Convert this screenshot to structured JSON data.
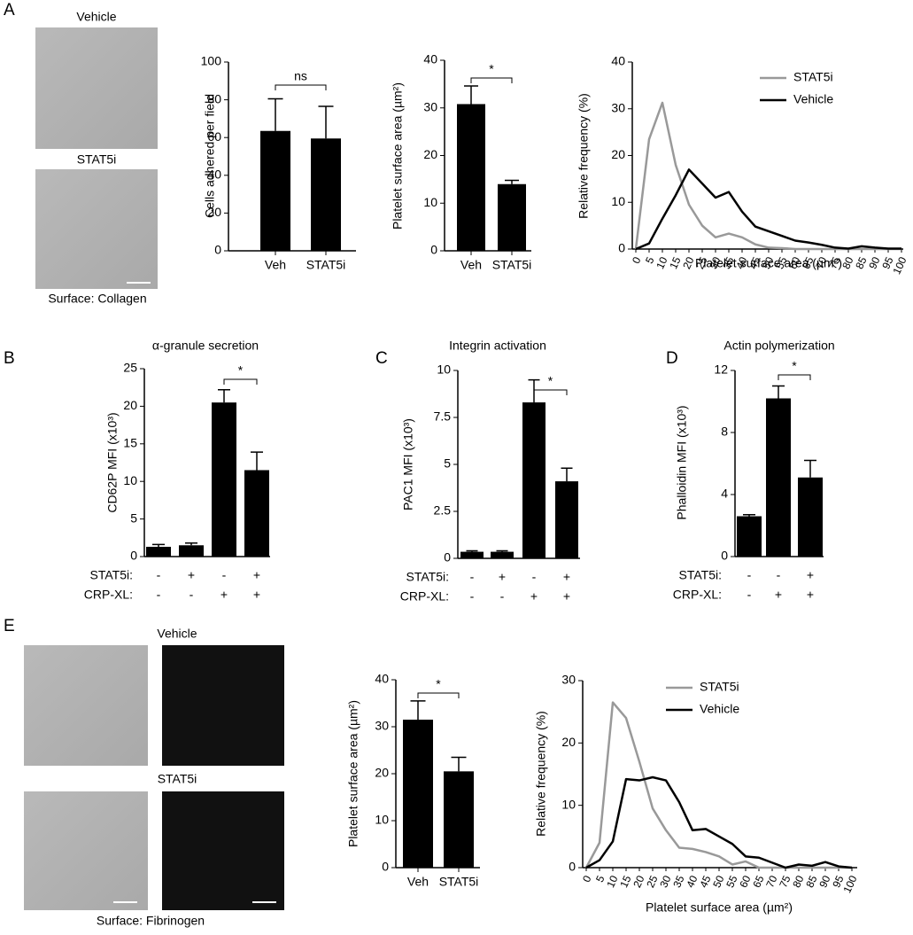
{
  "panel_labels": [
    "A",
    "B",
    "C",
    "D",
    "E"
  ],
  "micrographs": {
    "collagen": {
      "labels": [
        "Vehicle",
        "STAT5i"
      ],
      "surface": "Surface: Collagen"
    },
    "fibrinogen": {
      "labels": [
        "Vehicle",
        "STAT5i"
      ],
      "surface": "Surface: Fibrinogen"
    }
  },
  "chart_data": [
    {
      "type": "bar",
      "ylabel": "Cells adhered per field",
      "categories": [
        "Veh",
        "STAT5i"
      ],
      "values": [
        63.5,
        59.5
      ],
      "errors": [
        17,
        17
      ],
      "color": "#000000",
      "ylim": [
        0,
        100
      ],
      "yticks": [
        0,
        20,
        40,
        60,
        80,
        100
      ],
      "annotation": "ns"
    },
    {
      "type": "bar",
      "ylabel": "Platelet surface area (µm²)",
      "categories": [
        "Veh",
        "STAT5i"
      ],
      "values": [
        30.8,
        14
      ],
      "errors": [
        3.8,
        0.8
      ],
      "color": "#000000",
      "ylim": [
        0,
        40
      ],
      "yticks": [
        0,
        10,
        20,
        30,
        40
      ],
      "annotation": "*"
    },
    {
      "type": "line",
      "ylabel": "Relative frequency (%)",
      "xlabel": "Platelet surface area (µm²)",
      "x": [
        0,
        5,
        10,
        15,
        20,
        25,
        30,
        35,
        40,
        45,
        50,
        55,
        60,
        65,
        70,
        75,
        80,
        85,
        90,
        95,
        100
      ],
      "xlim": [
        0,
        100
      ],
      "xticks": [
        0,
        5,
        10,
        15,
        20,
        25,
        30,
        35,
        40,
        45,
        50,
        55,
        60,
        65,
        70,
        75,
        80,
        85,
        90,
        95,
        100
      ],
      "ylim": [
        0,
        40
      ],
      "yticks": [
        0,
        10,
        20,
        30,
        40
      ],
      "legend": "upper right",
      "series": [
        {
          "name": "STAT5i",
          "color": "#999999",
          "values": [
            0,
            23.5,
            31.3,
            18,
            9.5,
            5,
            2.5,
            3.3,
            2.5,
            1,
            0.3,
            0.2,
            0,
            0,
            0,
            0,
            0,
            0,
            0,
            0,
            0
          ]
        },
        {
          "name": "Vehicle",
          "color": "#000000",
          "values": [
            0,
            1.2,
            6.5,
            11.5,
            17,
            14,
            11,
            12.2,
            8,
            4.8,
            3.8,
            2.8,
            1.8,
            1.4,
            0.9,
            0.3,
            0.1,
            0.6,
            0.3,
            0.1,
            0.1
          ]
        }
      ]
    },
    {
      "type": "bar",
      "title": "α-granule secretion",
      "ylabel": "CD62P MFI (x10³)",
      "values": [
        1.3,
        1.5,
        20.5,
        11.5
      ],
      "errors": [
        0.3,
        0.3,
        1.7,
        2.4
      ],
      "color": "#000000",
      "ylim": [
        0,
        25
      ],
      "yticks": [
        0,
        5,
        10,
        15,
        20,
        25
      ],
      "annotation": "*",
      "treatments": [
        {
          "label": "STAT5i:",
          "signs": [
            "-",
            "+",
            "-",
            "+"
          ]
        },
        {
          "label": "CRP-XL:",
          "signs": [
            "-",
            "-",
            "+",
            "+"
          ]
        }
      ]
    },
    {
      "type": "bar",
      "title": "Integrin activation",
      "ylabel": "PAC1 MFI (x10³)",
      "values": [
        0.35,
        0.35,
        8.3,
        4.1
      ],
      "errors": [
        0.05,
        0.05,
        1.2,
        0.7
      ],
      "color": "#000000",
      "ylim": [
        0,
        10
      ],
      "yticks": [
        0,
        2.5,
        5,
        7.5,
        10
      ],
      "annotation": "*",
      "treatments": [
        {
          "label": "STAT5i:",
          "signs": [
            "-",
            "+",
            "-",
            "+"
          ]
        },
        {
          "label": "CRP-XL:",
          "signs": [
            "-",
            "-",
            "+",
            "+"
          ]
        }
      ]
    },
    {
      "type": "bar",
      "title": "Actin polymerization",
      "ylabel": "Phalloidin MFI (x10³)",
      "values": [
        2.6,
        10.2,
        5.1
      ],
      "errors": [
        0.1,
        0.8,
        1.1
      ],
      "color": "#000000",
      "ylim": [
        0,
        12
      ],
      "yticks": [
        0,
        4,
        8,
        12
      ],
      "annotation": "*",
      "treatments": [
        {
          "label": "STAT5i:",
          "signs": [
            "-",
            "-",
            "+"
          ]
        },
        {
          "label": "CRP-XL:",
          "signs": [
            "-",
            "+",
            "+"
          ]
        }
      ]
    },
    {
      "type": "bar",
      "ylabel": "Platelet surface area (µm²)",
      "categories": [
        "Veh",
        "STAT5i"
      ],
      "values": [
        31.5,
        20.5
      ],
      "errors": [
        4,
        3
      ],
      "color": "#000000",
      "ylim": [
        0,
        40
      ],
      "yticks": [
        0,
        10,
        20,
        30,
        40
      ],
      "annotation": "*"
    },
    {
      "type": "line",
      "ylabel": "Relative frequency (%)",
      "xlabel": "Platelet surface area (µm²)",
      "x": [
        0,
        5,
        10,
        15,
        20,
        25,
        30,
        35,
        40,
        45,
        50,
        55,
        60,
        65,
        70,
        75,
        80,
        85,
        90,
        95,
        100
      ],
      "xlim": [
        0,
        100
      ],
      "xticks": [
        0,
        5,
        10,
        15,
        20,
        25,
        30,
        35,
        40,
        45,
        50,
        55,
        60,
        65,
        70,
        75,
        80,
        85,
        90,
        95,
        100
      ],
      "ylim": [
        0,
        30
      ],
      "yticks": [
        0,
        10,
        20,
        30
      ],
      "legend": "upper right",
      "series": [
        {
          "name": "STAT5i",
          "color": "#999999",
          "values": [
            0,
            4,
            26.5,
            24,
            17,
            9.5,
            6,
            3.2,
            3,
            2.5,
            1.8,
            0.5,
            1,
            0,
            0,
            0,
            0,
            0,
            0,
            0,
            0
          ]
        },
        {
          "name": "Vehicle",
          "color": "#000000",
          "values": [
            0,
            1.2,
            4.2,
            14.2,
            14,
            14.5,
            14,
            10.5,
            6,
            6.2,
            5,
            3.8,
            1.8,
            1.6,
            0.8,
            0,
            0.5,
            0.3,
            0.9,
            0.2,
            0
          ]
        }
      ]
    }
  ]
}
